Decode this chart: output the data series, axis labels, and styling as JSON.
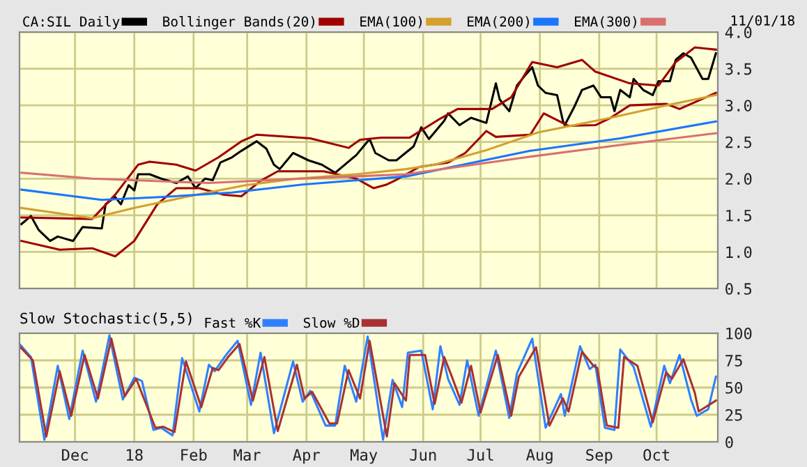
{
  "chart_data": [
    {
      "type": "line",
      "legend": "top",
      "grid": true,
      "marker": "none",
      "line_style": "solid",
      "tick_labels": "y",
      "xlim": [
        "2017-11-02",
        "2018-11-02"
      ],
      "ylim": [
        0.5,
        4.0
      ],
      "yticks": [
        0.5,
        {
          "value": 1.0,
          "label": "1.0"
        },
        1.5,
        {
          "value": 2.0,
          "label": "2.0"
        },
        2.5,
        {
          "value": 3.0,
          "label": "3.0"
        },
        3.5,
        {
          "value": 4.0,
          "label": "4.0"
        }
      ],
      "xticks": [
        {
          "value": "2017-12-01",
          "label": null
        },
        {
          "value": "2018-01-01",
          "label": null
        },
        {
          "value": "2018-02-01",
          "label": null
        },
        {
          "value": "2018-03-01",
          "label": null
        },
        {
          "value": "2018-04-01",
          "label": null
        },
        {
          "value": "2018-05-01",
          "label": null
        },
        {
          "value": "2018-06-01",
          "label": null
        },
        {
          "value": "2018-07-01",
          "label": null
        },
        {
          "value": "2018-08-01",
          "label": null
        },
        {
          "value": "2018-09-01",
          "label": null
        },
        {
          "value": "2018-10-01",
          "label": null
        }
      ],
      "annotations": [
        "11/01/18"
      ],
      "series": [
        {
          "name": "CA:SIL Daily",
          "color": "#000000",
          "x": [
            "2017-11-03",
            "2017-11-08",
            "2017-11-12",
            "2017-11-18",
            "2017-11-22",
            "2017-11-30",
            "2017-12-05",
            "2017-12-15",
            "2017-12-17",
            "2017-12-22",
            "2017-12-25",
            "2017-12-29",
            "2018-01-01",
            "2018-01-03",
            "2018-01-09",
            "2018-01-15",
            "2018-01-23",
            "2018-01-29",
            "2018-02-02",
            "2018-02-07",
            "2018-02-11",
            "2018-02-15",
            "2018-02-21",
            "2018-02-26",
            "2018-03-06",
            "2018-03-11",
            "2018-03-15",
            "2018-03-18",
            "2018-03-25",
            "2018-04-02",
            "2018-04-09",
            "2018-04-16",
            "2018-04-21",
            "2018-04-27",
            "2018-05-04",
            "2018-05-07",
            "2018-05-14",
            "2018-05-18",
            "2018-05-27",
            "2018-05-31",
            "2018-06-04",
            "2018-06-12",
            "2018-06-14",
            "2018-06-20",
            "2018-06-26",
            "2018-07-04",
            "2018-07-09",
            "2018-07-11",
            "2018-07-16",
            "2018-07-20",
            "2018-07-24",
            "2018-07-28",
            "2018-07-31",
            "2018-08-04",
            "2018-08-10",
            "2018-08-13",
            "2018-08-14",
            "2018-08-19",
            "2018-08-23",
            "2018-08-29",
            "2018-09-02",
            "2018-09-07",
            "2018-09-09",
            "2018-09-12",
            "2018-09-17",
            "2018-09-19",
            "2018-09-24",
            "2018-09-29",
            "2018-10-02",
            "2018-10-08",
            "2018-10-11",
            "2018-10-15",
            "2018-10-19",
            "2018-10-25",
            "2018-10-28",
            "2018-11-01"
          ],
          "values": [
            1.38,
            1.49,
            1.3,
            1.15,
            1.21,
            1.15,
            1.34,
            1.32,
            1.65,
            1.75,
            1.65,
            1.91,
            1.84,
            2.06,
            2.06,
            2.0,
            1.94,
            2.03,
            1.87,
            2.0,
            1.98,
            2.22,
            2.29,
            2.38,
            2.51,
            2.41,
            2.19,
            2.13,
            2.35,
            2.25,
            2.19,
            2.08,
            2.19,
            2.32,
            2.54,
            2.35,
            2.25,
            2.25,
            2.44,
            2.7,
            2.54,
            2.79,
            2.89,
            2.73,
            2.83,
            2.76,
            3.3,
            3.08,
            2.92,
            3.27,
            3.4,
            3.52,
            3.27,
            3.17,
            3.14,
            2.79,
            2.73,
            2.98,
            3.21,
            3.27,
            3.11,
            3.11,
            2.92,
            3.21,
            3.11,
            3.36,
            3.21,
            3.14,
            3.33,
            3.33,
            3.62,
            3.71,
            3.65,
            3.36,
            3.36,
            3.71
          ]
        },
        {
          "name": "Bollinger Bands(20)",
          "color": "#a00000",
          "x": [
            "2017-11-03",
            "2017-12-10",
            "2017-12-22",
            "2018-01-03",
            "2018-01-09",
            "2018-01-23",
            "2018-02-02",
            "2018-02-14",
            "2018-02-26",
            "2018-03-06",
            "2018-03-17",
            "2018-04-03",
            "2018-04-23",
            "2018-04-29",
            "2018-05-10",
            "2018-05-25",
            "2018-06-10",
            "2018-06-19",
            "2018-07-07",
            "2018-07-17",
            "2018-07-28",
            "2018-08-10",
            "2018-08-23",
            "2018-08-30",
            "2018-09-17",
            "2018-10-02",
            "2018-10-11",
            "2018-10-21",
            "2018-11-01"
          ],
          "values": [
            1.47,
            1.45,
            1.78,
            2.19,
            2.23,
            2.19,
            2.11,
            2.29,
            2.51,
            2.6,
            2.58,
            2.55,
            2.42,
            2.53,
            2.56,
            2.56,
            2.82,
            2.95,
            2.95,
            3.11,
            3.59,
            3.52,
            3.62,
            3.46,
            3.3,
            3.27,
            3.59,
            3.79,
            3.76
          ]
        },
        {
          "color": "#a00000",
          "x": [
            "2017-11-03",
            "2017-11-23",
            "2017-12-10",
            "2017-12-22",
            "2018-01-01",
            "2018-01-13",
            "2018-01-23",
            "2018-02-04",
            "2018-02-17",
            "2018-02-26",
            "2018-03-08",
            "2018-03-17",
            "2018-04-10",
            "2018-04-27",
            "2018-05-06",
            "2018-05-13",
            "2018-05-17",
            "2018-05-30",
            "2018-06-14",
            "2018-06-23",
            "2018-07-04",
            "2018-07-09",
            "2018-07-27",
            "2018-08-03",
            "2018-08-16",
            "2018-08-30",
            "2018-09-07",
            "2018-09-17",
            "2018-10-06",
            "2018-10-13",
            "2018-11-01"
          ],
          "values": [
            1.15,
            1.03,
            1.05,
            0.94,
            1.15,
            1.65,
            1.87,
            1.87,
            1.78,
            1.76,
            1.97,
            2.1,
            2.1,
            2.0,
            1.87,
            1.92,
            1.97,
            2.16,
            2.22,
            2.35,
            2.65,
            2.57,
            2.6,
            2.89,
            2.72,
            2.73,
            2.83,
            3.0,
            3.02,
            2.95,
            3.17
          ]
        },
        {
          "name": "EMA(100)",
          "color": "#d4a030",
          "x": [
            "2017-11-03",
            "2017-12-10",
            "2018-01-01",
            "2018-01-28",
            "2018-02-28",
            "2018-03-27",
            "2018-04-27",
            "2018-05-23",
            "2018-06-07",
            "2018-07-03",
            "2018-07-31",
            "2018-09-07",
            "2018-10-06",
            "2018-11-01"
          ],
          "values": [
            1.6,
            1.46,
            1.6,
            1.75,
            1.91,
            2.0,
            2.06,
            2.13,
            2.19,
            2.38,
            2.63,
            2.83,
            3.0,
            3.14
          ]
        },
        {
          "name": "EMA(200)",
          "color": "#1a75ff",
          "x": [
            "2017-11-03",
            "2017-12-15",
            "2018-01-16",
            "2018-02-21",
            "2018-03-30",
            "2018-05-23",
            "2018-07-27",
            "2018-09-12",
            "2018-11-01"
          ],
          "values": [
            1.85,
            1.71,
            1.75,
            1.81,
            1.92,
            2.03,
            2.38,
            2.55,
            2.78
          ]
        },
        {
          "name": "EMA(300)",
          "color": "#d87070",
          "x": [
            "2017-11-03",
            "2017-12-10",
            "2018-02-09",
            "2018-03-30",
            "2018-05-23",
            "2018-07-27",
            "2018-09-12",
            "2018-11-01"
          ],
          "values": [
            2.08,
            2.0,
            1.94,
            2.0,
            2.06,
            2.3,
            2.46,
            2.62
          ]
        }
      ]
    },
    {
      "type": "line",
      "title": "Slow Stochastic(5,5)",
      "legend": "top",
      "grid": true,
      "marker": "none",
      "line_style": "solid",
      "xlim": [
        "2017-11-02",
        "2018-11-02"
      ],
      "ylim": [
        0,
        100
      ],
      "yticks": [
        0,
        25,
        50,
        75,
        100
      ],
      "xticks": [
        {
          "value": "2017-12-01",
          "label": "Dec"
        },
        {
          "value": "2018-01-01",
          "label": "18"
        },
        {
          "value": "2018-02-01",
          "label": "Feb"
        },
        {
          "value": "2018-03-01",
          "label": "Mar"
        },
        {
          "value": "2018-04-01",
          "label": "Apr"
        },
        {
          "value": "2018-05-01",
          "label": "May"
        },
        {
          "value": "2018-06-01",
          "label": "Jun"
        },
        {
          "value": "2018-07-01",
          "label": "Jul"
        },
        {
          "value": "2018-08-01",
          "label": "Aug"
        },
        {
          "value": "2018-09-01",
          "label": "Sep"
        },
        {
          "value": "2018-10-01",
          "label": "Oct"
        }
      ],
      "series": [
        {
          "name": "Fast %K",
          "color": "#2f80ff",
          "x": [
            "2017-11-02",
            "2017-11-08",
            "2017-11-15",
            "2017-11-22",
            "2017-11-28",
            "2017-12-05",
            "2017-12-12",
            "2017-12-19",
            "2017-12-26",
            "2018-01-01",
            "2018-01-05",
            "2018-01-11",
            "2018-01-15",
            "2018-01-21",
            "2018-01-26",
            "2018-02-04",
            "2018-02-09",
            "2018-02-12",
            "2018-02-18",
            "2018-02-24",
            "2018-03-03",
            "2018-03-08",
            "2018-03-15",
            "2018-03-25",
            "2018-03-30",
            "2018-04-03",
            "2018-04-11",
            "2018-04-16",
            "2018-04-21",
            "2018-04-27",
            "2018-05-03",
            "2018-05-11",
            "2018-05-16",
            "2018-05-21",
            "2018-05-24",
            "2018-05-31",
            "2018-06-06",
            "2018-06-10",
            "2018-06-14",
            "2018-06-20",
            "2018-06-24",
            "2018-06-30",
            "2018-07-09",
            "2018-07-16",
            "2018-07-20",
            "2018-07-28",
            "2018-08-04",
            "2018-08-12",
            "2018-08-14",
            "2018-08-22",
            "2018-08-27",
            "2018-08-30",
            "2018-09-04",
            "2018-09-09",
            "2018-09-12",
            "2018-09-19",
            "2018-09-28",
            "2018-10-05",
            "2018-10-08",
            "2018-10-13",
            "2018-10-19",
            "2018-10-22",
            "2018-10-28",
            "2018-11-01"
          ],
          "values": [
            90,
            78,
            2,
            70,
            21,
            84,
            37,
            98,
            39,
            59,
            56,
            11,
            13,
            6,
            77,
            28,
            71,
            65,
            80,
            93,
            34,
            82,
            8,
            74,
            37,
            47,
            15,
            15,
            70,
            37,
            97,
            2,
            57,
            32,
            82,
            84,
            30,
            88,
            58,
            34,
            75,
            24,
            84,
            22,
            63,
            95,
            13,
            44,
            24,
            88,
            67,
            71,
            13,
            11,
            85,
            69,
            14,
            70,
            54,
            80,
            39,
            24,
            30,
            60
          ]
        },
        {
          "name": "Slow %D",
          "color": "#a83232",
          "x": [
            "2017-11-02",
            "2017-11-09",
            "2017-11-16",
            "2017-11-23",
            "2017-11-29",
            "2017-12-06",
            "2017-12-13",
            "2017-12-20",
            "2017-12-27",
            "2018-01-02",
            "2018-01-12",
            "2018-01-16",
            "2018-01-22",
            "2018-01-28",
            "2018-02-05",
            "2018-02-11",
            "2018-02-14",
            "2018-02-19",
            "2018-02-25",
            "2018-03-04",
            "2018-03-10",
            "2018-03-17",
            "2018-03-27",
            "2018-03-31",
            "2018-04-04",
            "2018-04-13",
            "2018-04-17",
            "2018-04-23",
            "2018-04-29",
            "2018-05-04",
            "2018-05-13",
            "2018-05-17",
            "2018-05-23",
            "2018-05-25",
            "2018-06-02",
            "2018-06-07",
            "2018-06-12",
            "2018-06-16",
            "2018-06-21",
            "2018-06-26",
            "2018-07-01",
            "2018-07-10",
            "2018-07-17",
            "2018-07-21",
            "2018-07-30",
            "2018-08-06",
            "2018-08-13",
            "2018-08-16",
            "2018-08-23",
            "2018-08-29",
            "2018-08-31",
            "2018-09-05",
            "2018-09-11",
            "2018-09-14",
            "2018-09-21",
            "2018-09-29",
            "2018-10-06",
            "2018-10-09",
            "2018-10-15",
            "2018-10-21",
            "2018-10-23",
            "2018-11-01"
          ],
          "values": [
            88,
            75,
            5,
            65,
            24,
            80,
            40,
            95,
            42,
            58,
            13,
            14,
            9,
            74,
            32,
            68,
            66,
            78,
            90,
            38,
            78,
            10,
            71,
            40,
            46,
            17,
            17,
            66,
            40,
            93,
            5,
            54,
            38,
            80,
            80,
            35,
            78,
            60,
            36,
            70,
            27,
            80,
            24,
            60,
            87,
            15,
            40,
            28,
            83,
            70,
            68,
            15,
            13,
            78,
            70,
            18,
            64,
            58,
            76,
            45,
            28,
            38
          ]
        }
      ]
    }
  ]
}
